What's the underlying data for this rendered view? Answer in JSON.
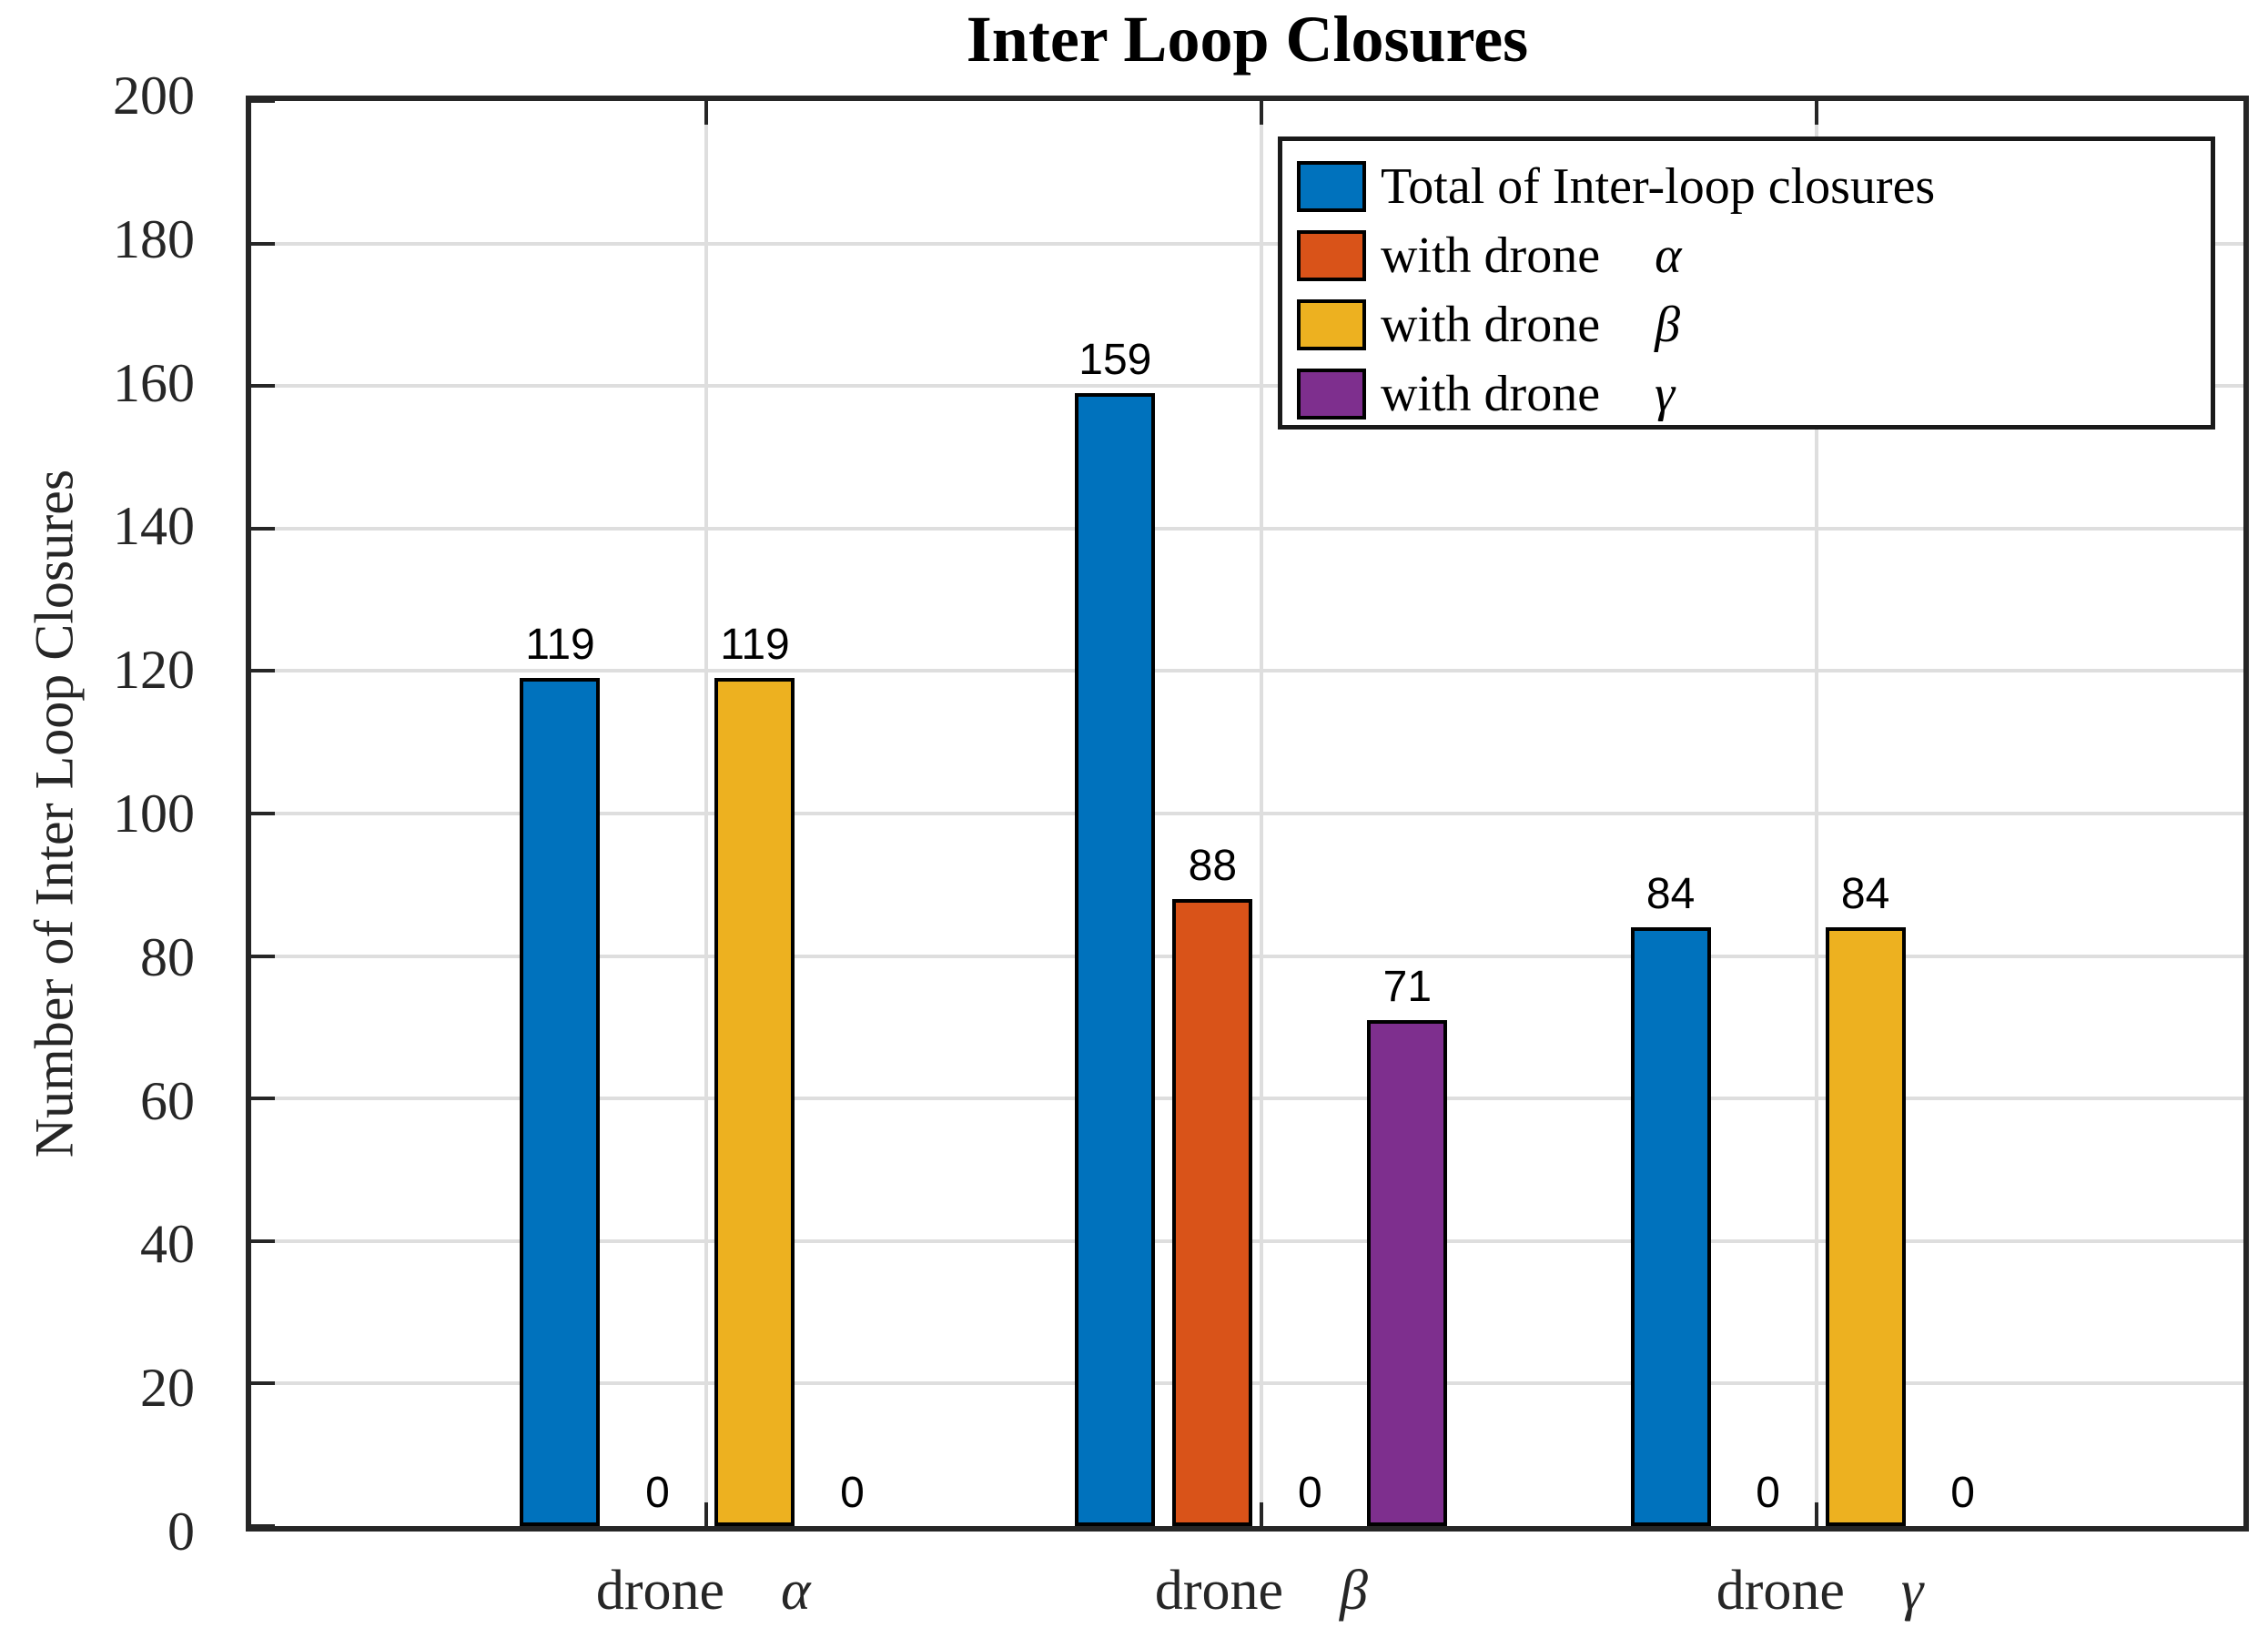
{
  "title": "Inter Loop Closures",
  "y_axis": {
    "label": "Number of Inter Loop Closures",
    "ticks": [
      0,
      20,
      40,
      60,
      80,
      100,
      120,
      140,
      160,
      180,
      200
    ],
    "min": 0,
    "max": 200
  },
  "x_axis": {
    "categories": [
      {
        "prefix": "drone",
        "greek": "α"
      },
      {
        "prefix": "drone",
        "greek": "β"
      },
      {
        "prefix": "drone",
        "greek": "γ"
      }
    ]
  },
  "legend": {
    "items": [
      {
        "prefix": "Total of Inter-loop closures",
        "greek": "",
        "color": "#0072BD"
      },
      {
        "prefix": "with drone",
        "greek": "α",
        "color": "#D95319"
      },
      {
        "prefix": "with drone",
        "greek": "β",
        "color": "#EDB120"
      },
      {
        "prefix": "with drone",
        "greek": "γ",
        "color": "#7E2F8E"
      }
    ]
  },
  "colors": {
    "axis": "#262626",
    "grid": "#DEDEDE",
    "bar_edge": "#000000",
    "blue": "#0072BD",
    "orange": "#D95319",
    "yellow": "#EDB120",
    "purple": "#7E2F8E"
  },
  "chart_data": {
    "type": "bar",
    "title": "Inter Loop Closures",
    "xlabel": "",
    "ylabel": "Number of Inter Loop Closures",
    "ylim": [
      0,
      200
    ],
    "ytick_step": 20,
    "grid": true,
    "legend_position": "upper right",
    "bar_value_labels": true,
    "categories": [
      "drone α",
      "drone β",
      "drone γ"
    ],
    "series": [
      {
        "name": "Total of Inter-loop closures",
        "color": "#0072BD",
        "values": [
          119,
          159,
          84
        ]
      },
      {
        "name": "with drone α",
        "color": "#D95319",
        "values": [
          0,
          88,
          0
        ]
      },
      {
        "name": "with drone β",
        "color": "#EDB120",
        "values": [
          119,
          0,
          84
        ]
      },
      {
        "name": "with drone γ",
        "color": "#7E2F8E",
        "values": [
          0,
          71,
          0
        ]
      }
    ]
  }
}
